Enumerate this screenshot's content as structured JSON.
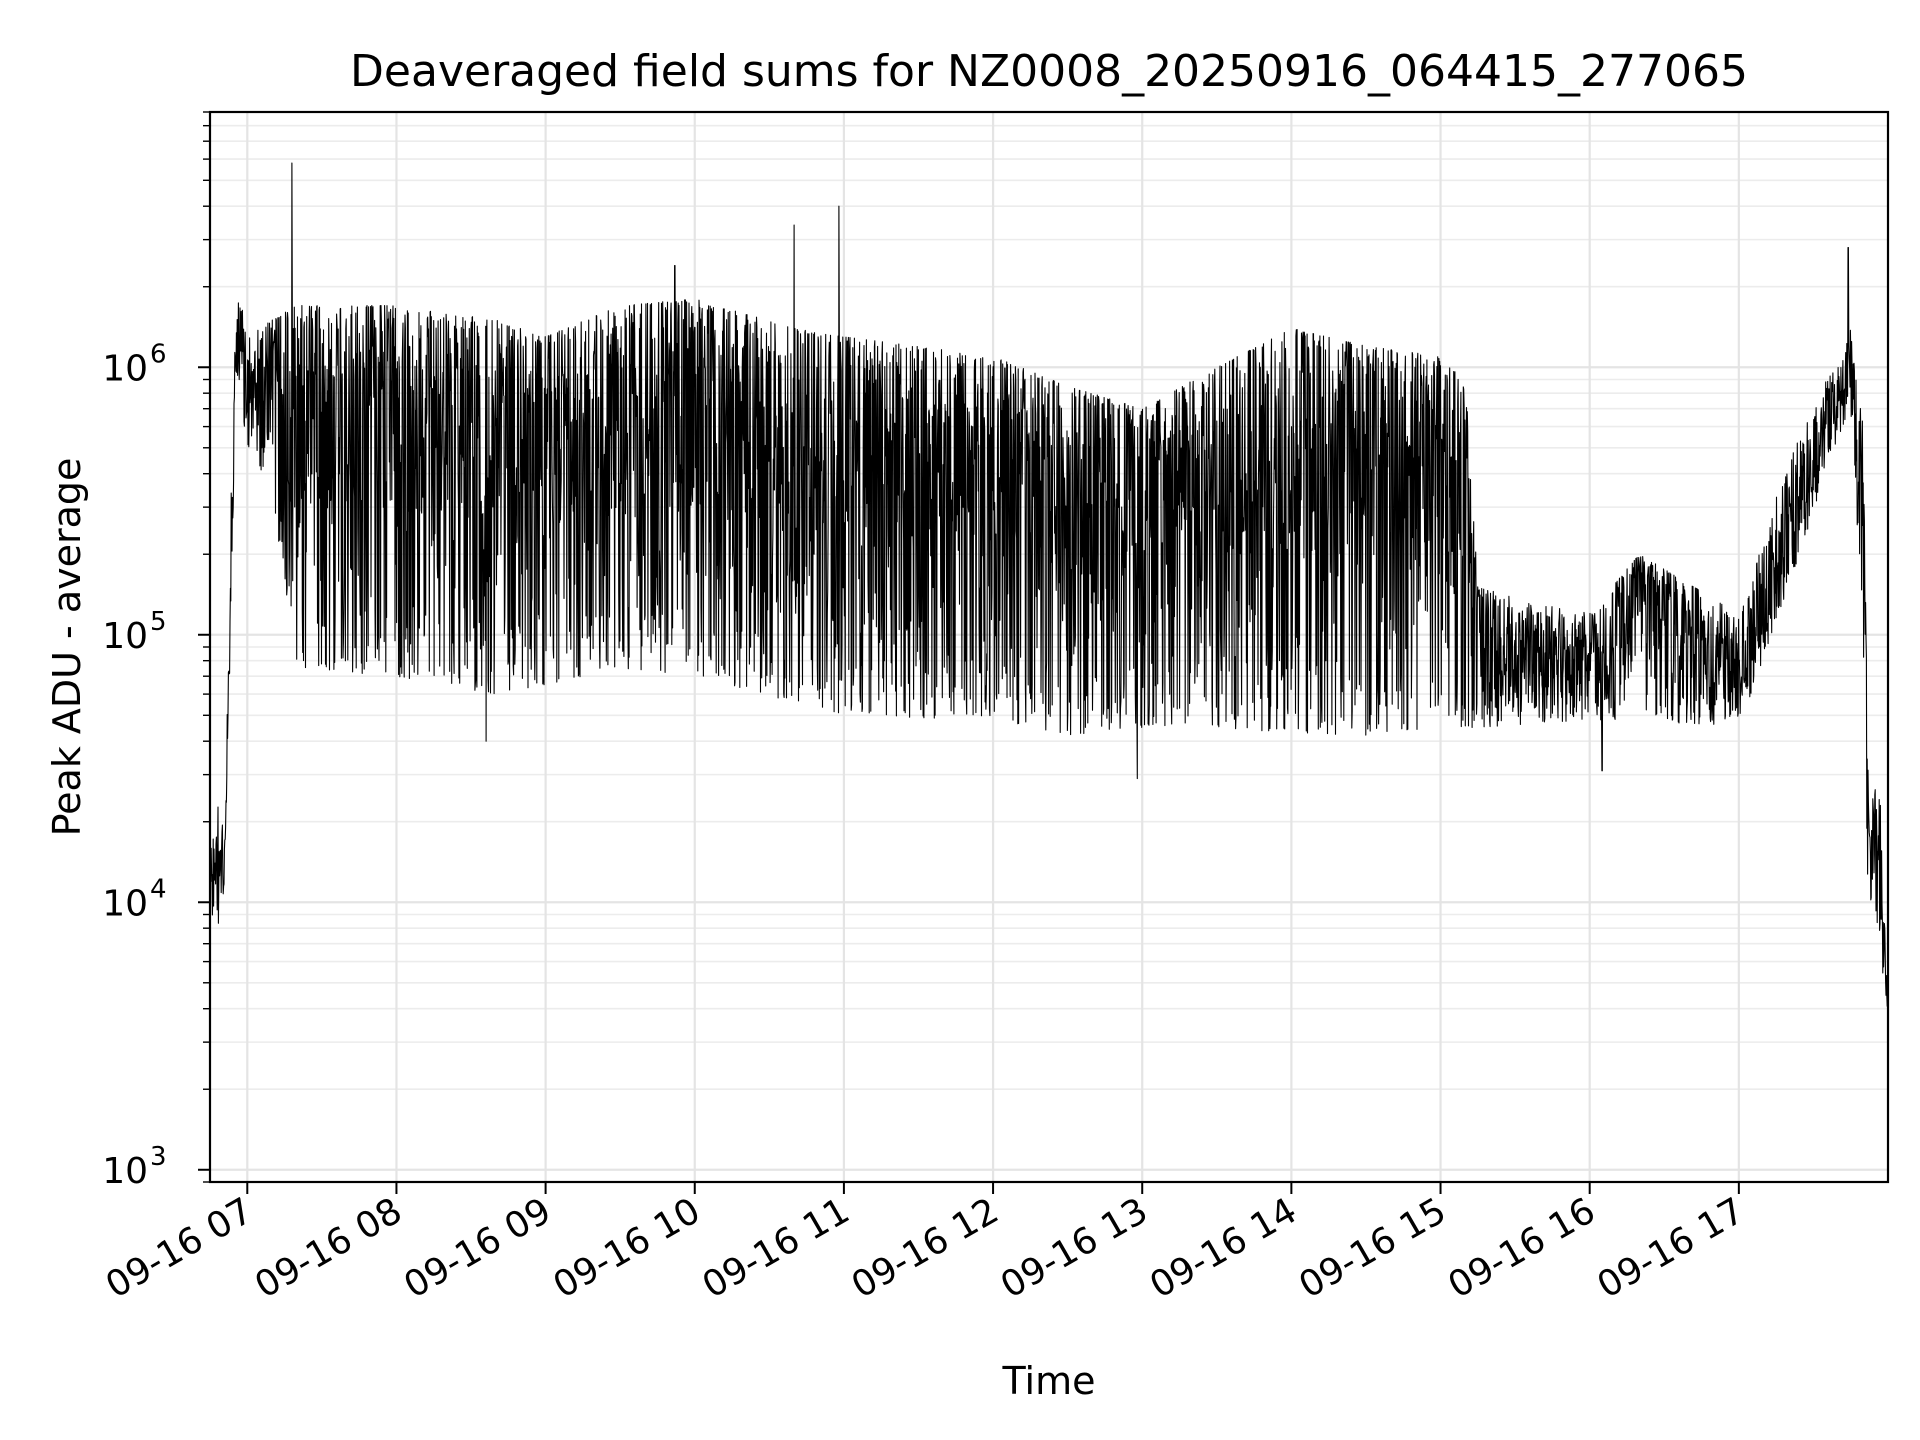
{
  "chart_data": {
    "type": "line",
    "title": "Deaveraged field sums for NZ0008_20250916_064415_277065",
    "xlabel": "Time",
    "ylabel": "Peak ADU - average",
    "x_type": "datetime",
    "xlim": [
      "2025-09-16 06:45",
      "2025-09-16 18:00"
    ],
    "y_scale": "log",
    "ylim": [
      900,
      9000000
    ],
    "grid": "on (major and minor)",
    "legend": "none",
    "x_ticks": [
      {
        "value": "2025-09-16 07:00",
        "label": "09-16 07"
      },
      {
        "value": "2025-09-16 08:00",
        "label": "09-16 08"
      },
      {
        "value": "2025-09-16 09:00",
        "label": "09-16 09"
      },
      {
        "value": "2025-09-16 10:00",
        "label": "09-16 10"
      },
      {
        "value": "2025-09-16 11:00",
        "label": "09-16 11"
      },
      {
        "value": "2025-09-16 12:00",
        "label": "09-16 12"
      },
      {
        "value": "2025-09-16 13:00",
        "label": "09-16 13"
      },
      {
        "value": "2025-09-16 14:00",
        "label": "09-16 14"
      },
      {
        "value": "2025-09-16 15:00",
        "label": "09-16 15"
      },
      {
        "value": "2025-09-16 16:00",
        "label": "09-16 16"
      },
      {
        "value": "2025-09-16 17:00",
        "label": "09-16 17"
      }
    ],
    "y_ticks": [
      {
        "value": 1000,
        "base": "10",
        "exp": "3"
      },
      {
        "value": 10000,
        "base": "10",
        "exp": "4"
      },
      {
        "value": 100000,
        "base": "10",
        "exp": "5"
      },
      {
        "value": 1000000,
        "base": "10",
        "exp": "6"
      }
    ],
    "series": [
      {
        "color": "#000000",
        "envelope": [
          {
            "x": "2025-09-16 06:45",
            "low": 9000,
            "high": 15000
          },
          {
            "x": "2025-09-16 06:48",
            "low": 7500,
            "high": 23000
          },
          {
            "x": "2025-09-16 06:51",
            "low": 12000,
            "high": 20000
          },
          {
            "x": "2025-09-16 06:52",
            "low": 30000,
            "high": 60000
          },
          {
            "x": "2025-09-16 06:54",
            "low": 200000,
            "high": 800000
          },
          {
            "x": "2025-09-16 06:55",
            "low": 700000,
            "high": 1600000
          },
          {
            "x": "2025-09-16 06:57",
            "low": 800000,
            "high": 2000000
          },
          {
            "x": "2025-09-16 07:00",
            "low": 500000,
            "high": 1300000
          },
          {
            "x": "2025-09-16 07:10",
            "low": 350000,
            "high": 1500000
          },
          {
            "x": "2025-09-16 07:15",
            "low": 150000,
            "high": 1600000
          },
          {
            "x": "2025-09-16 07:20",
            "low": 75000,
            "high": 1700000
          },
          {
            "x": "2025-09-16 08:00",
            "low": 70000,
            "high": 1700000
          },
          {
            "x": "2025-09-16 08:40",
            "low": 60000,
            "high": 1500000
          },
          {
            "x": "2025-09-16 09:00",
            "low": 65000,
            "high": 1300000
          },
          {
            "x": "2025-09-16 09:30",
            "low": 75000,
            "high": 1700000
          },
          {
            "x": "2025-09-16 10:00",
            "low": 70000,
            "high": 1800000
          },
          {
            "x": "2025-09-16 10:40",
            "low": 55000,
            "high": 1400000
          },
          {
            "x": "2025-09-16 11:00",
            "low": 50000,
            "high": 1300000
          },
          {
            "x": "2025-09-16 12:00",
            "low": 48000,
            "high": 1100000
          },
          {
            "x": "2025-09-16 12:30",
            "low": 42000,
            "high": 850000
          },
          {
            "x": "2025-09-16 13:00",
            "low": 45000,
            "high": 700000
          },
          {
            "x": "2025-09-16 13:30",
            "low": 45000,
            "high": 1000000
          },
          {
            "x": "2025-09-16 14:00",
            "low": 43000,
            "high": 1400000
          },
          {
            "x": "2025-09-16 14:30",
            "low": 42000,
            "high": 1200000
          },
          {
            "x": "2025-09-16 15:00",
            "low": 45000,
            "high": 1100000
          },
          {
            "x": "2025-09-16 15:10",
            "low": 45000,
            "high": 900000
          },
          {
            "x": "2025-09-16 15:15",
            "low": 45000,
            "high": 150000
          },
          {
            "x": "2025-09-16 16:00",
            "low": 48000,
            "high": 120000
          },
          {
            "x": "2025-09-16 16:20",
            "low": 48000,
            "high": 200000
          },
          {
            "x": "2025-09-16 17:00",
            "low": 45000,
            "high": 120000
          },
          {
            "x": "2025-09-16 17:20",
            "low": 150000,
            "high": 450000
          },
          {
            "x": "2025-09-16 17:35",
            "low": 400000,
            "high": 900000
          },
          {
            "x": "2025-09-16 17:45",
            "low": 700000,
            "high": 1400000
          },
          {
            "x": "2025-09-16 17:50",
            "low": 100000,
            "high": 600000
          },
          {
            "x": "2025-09-16 17:52",
            "low": 10000,
            "high": 30000
          },
          {
            "x": "2025-09-16 17:57",
            "low": 7000,
            "high": 24000
          },
          {
            "x": "2025-09-16 18:00",
            "low": 3000,
            "high": 5000
          }
        ],
        "spikes": [
          {
            "x": "2025-09-16 07:18",
            "value": 5800000
          },
          {
            "x": "2025-09-16 09:52",
            "value": 2400000
          },
          {
            "x": "2025-09-16 10:40",
            "value": 3400000
          },
          {
            "x": "2025-09-16 10:58",
            "value": 4000000
          },
          {
            "x": "2025-09-16 17:44",
            "value": 2800000
          },
          {
            "x": "2025-09-16 12:58",
            "value": 29000
          },
          {
            "x": "2025-09-16 08:36",
            "value": 40000
          },
          {
            "x": "2025-09-16 16:05",
            "value": 31000
          }
        ]
      }
    ]
  }
}
